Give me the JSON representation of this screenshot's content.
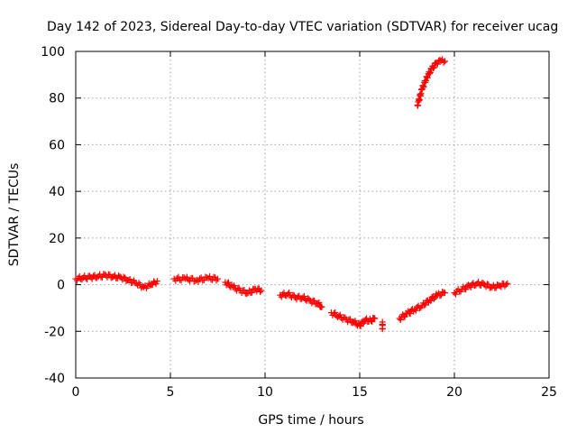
{
  "chart_data": {
    "type": "scatter",
    "title": "Day 142 of 2023, Sidereal Day-to-day VTEC variation (SDTVAR) for receiver ucag",
    "xlabel": "GPS time / hours",
    "ylabel": "SDTVAR / TECUs",
    "xlim": [
      0,
      25
    ],
    "ylim": [
      -40,
      100
    ],
    "xticks": [
      0,
      5,
      10,
      15,
      20,
      25
    ],
    "yticks": [
      -40,
      -20,
      0,
      20,
      40,
      60,
      80,
      100
    ],
    "grid": true,
    "marker": "plus",
    "color": "#ff0000",
    "series": [
      {
        "name": "SDTVAR",
        "segments": [
          [
            [
              0.0,
              2.5
            ],
            [
              0.4,
              3.0
            ],
            [
              0.8,
              3.2
            ],
            [
              1.2,
              3.6
            ],
            [
              1.6,
              4.0
            ],
            [
              2.0,
              3.5
            ],
            [
              2.4,
              3.0
            ],
            [
              2.8,
              2.0
            ],
            [
              3.2,
              0.5
            ],
            [
              3.6,
              -1.0
            ],
            [
              4.0,
              0.0
            ],
            [
              4.3,
              1.5
            ]
          ],
          [
            [
              5.2,
              2.5
            ],
            [
              5.8,
              2.5
            ],
            [
              6.4,
              2.0
            ],
            [
              7.0,
              2.8
            ],
            [
              7.5,
              2.5
            ]
          ],
          [
            [
              7.9,
              1.0
            ],
            [
              8.3,
              -1.0
            ],
            [
              8.7,
              -2.5
            ],
            [
              9.1,
              -3.5
            ],
            [
              9.5,
              -2.0
            ],
            [
              9.8,
              -2.5
            ]
          ],
          [
            [
              10.8,
              -4.5
            ],
            [
              11.2,
              -4.0
            ],
            [
              11.6,
              -5.5
            ],
            [
              12.0,
              -5.5
            ],
            [
              12.4,
              -7.0
            ],
            [
              12.8,
              -8.0
            ],
            [
              13.0,
              -9.5
            ]
          ],
          [
            [
              13.5,
              -12.0
            ],
            [
              13.9,
              -13.5
            ],
            [
              14.3,
              -15.0
            ],
            [
              14.7,
              -16.0
            ],
            [
              15.0,
              -17.5
            ],
            [
              15.3,
              -15.0
            ],
            [
              15.6,
              -15.5
            ],
            [
              15.8,
              -14.5
            ]
          ],
          [
            [
              16.2,
              -16.0
            ],
            [
              16.2,
              -19.0
            ]
          ],
          [
            [
              17.1,
              -14.5
            ],
            [
              17.5,
              -12.5
            ],
            [
              17.9,
              -10.5
            ],
            [
              18.3,
              -9.0
            ],
            [
              18.7,
              -6.5
            ],
            [
              19.1,
              -4.5
            ],
            [
              19.5,
              -3.5
            ]
          ],
          [
            [
              18.05,
              77.0
            ],
            [
              18.3,
              84.0
            ],
            [
              18.55,
              89.0
            ],
            [
              18.8,
              92.5
            ],
            [
              19.05,
              95.0
            ],
            [
              19.3,
              96.0
            ],
            [
              19.5,
              95.8
            ]
          ],
          [
            [
              20.0,
              -3.5
            ],
            [
              20.4,
              -2.0
            ],
            [
              20.8,
              -0.5
            ],
            [
              21.2,
              0.5
            ],
            [
              21.6,
              0.0
            ],
            [
              22.0,
              -1.0
            ],
            [
              22.4,
              -0.5
            ],
            [
              22.8,
              0.5
            ]
          ]
        ]
      }
    ]
  }
}
